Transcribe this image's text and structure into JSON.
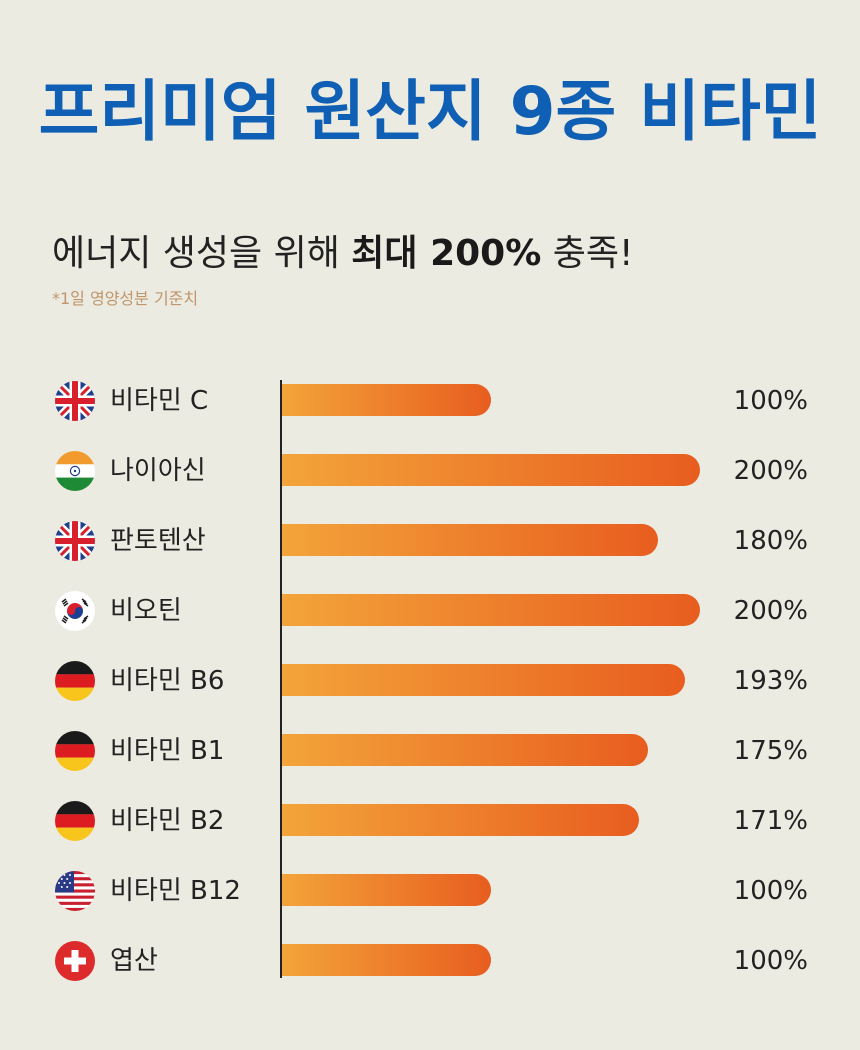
{
  "header": {
    "title": "프리미엄 원산지 9종 비타민",
    "subtitle_pre": "에너지 생성을 위해 ",
    "subtitle_bold": "최대 200%",
    "subtitle_post": " 충족!",
    "footnote": "*1일 영양성분 기준치"
  },
  "colors": {
    "background": "#ecebe1",
    "title": "#0f5fb5",
    "bar_start": "#f3a43a",
    "bar_end": "#e85d1f",
    "footnote": "#c0956b"
  },
  "chart_data": {
    "type": "bar",
    "orientation": "horizontal",
    "xlim": [
      0,
      200
    ],
    "categories": [
      "비타민 C",
      "나이아신",
      "판토텐산",
      "비오틴",
      "비타민 B6",
      "비타민 B1",
      "비타민 B2",
      "비타민 B12",
      "엽산"
    ],
    "values": [
      100,
      200,
      180,
      200,
      193,
      175,
      171,
      100,
      100
    ],
    "value_labels": [
      "100%",
      "200%",
      "180%",
      "200%",
      "193%",
      "175%",
      "171%",
      "100%",
      "100%"
    ],
    "flags": [
      "uk-flag-icon",
      "india-flag-icon",
      "uk-flag-icon",
      "korea-flag-icon",
      "germany-flag-icon",
      "germany-flag-icon",
      "germany-flag-icon",
      "usa-flag-icon",
      "switzerland-flag-icon"
    ]
  }
}
